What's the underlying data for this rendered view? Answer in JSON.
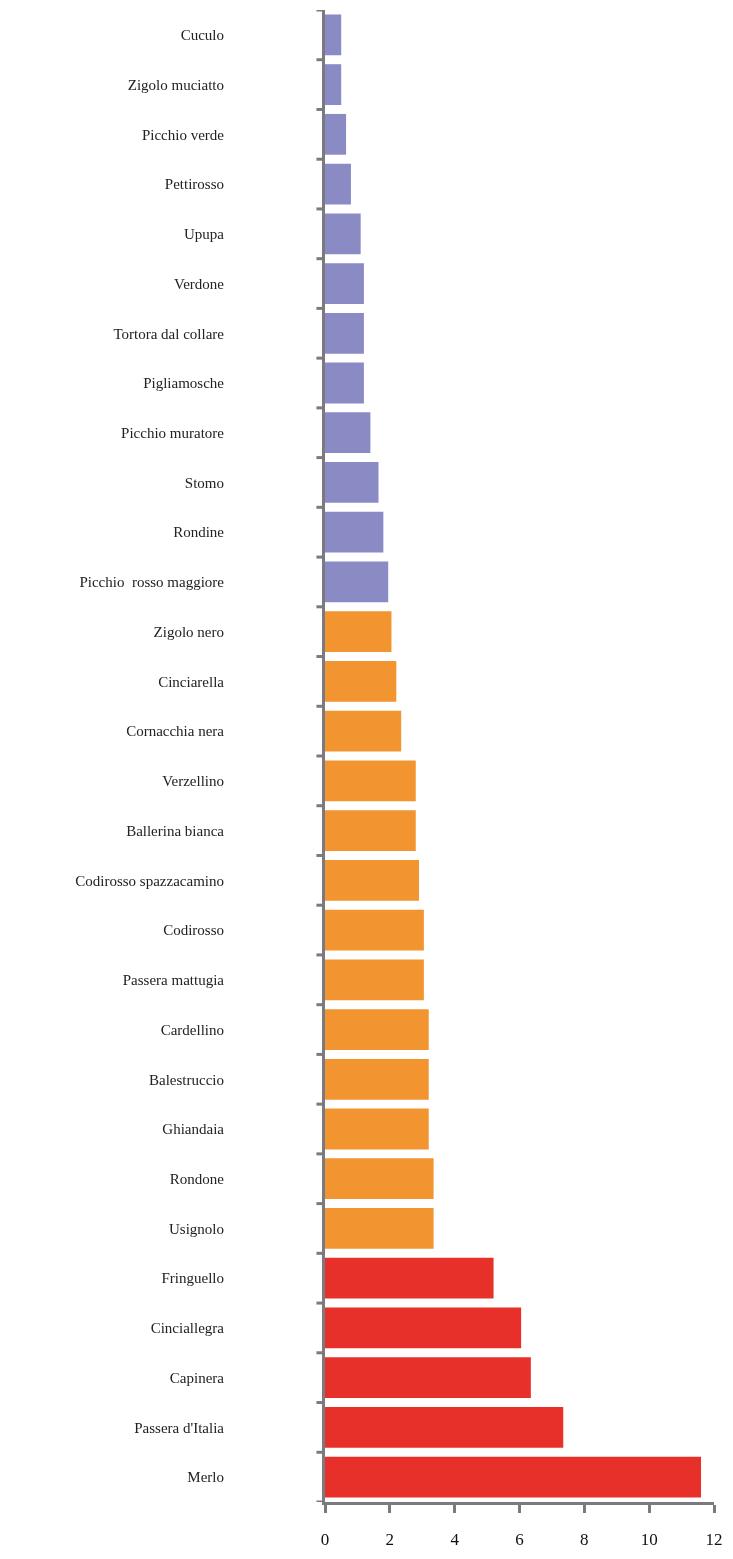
{
  "chart_data": {
    "type": "bar",
    "orientation": "horizontal",
    "categories": [
      "Cuculo",
      "Zigolo muciatto",
      "Picchio verde",
      "Pettirosso",
      "Upupa",
      "Verdone",
      "Tortora dal collare",
      "Pigliamosche",
      "Picchio muratore",
      "Stomo",
      "Rondine",
      "Picchio  rosso maggiore",
      "Zigolo nero",
      "Cinciarella",
      "Cornacchia nera",
      "Verzellino",
      "Ballerina bianca",
      "Codirosso spazzacamino",
      "Codirosso",
      "Passera mattugia",
      "Cardellino",
      "Balestruccio",
      "Ghiandaia",
      "Rondone",
      "Usignolo",
      "Fringuello",
      "Cinciallegra",
      "Capinera",
      "Passera d'Italia",
      "Merlo"
    ],
    "values": [
      0.5,
      0.5,
      0.65,
      0.8,
      1.1,
      1.2,
      1.2,
      1.2,
      1.4,
      1.65,
      1.8,
      1.95,
      2.05,
      2.2,
      2.35,
      2.8,
      2.8,
      2.9,
      3.05,
      3.05,
      3.2,
      3.2,
      3.2,
      3.35,
      3.35,
      5.2,
      6.05,
      6.35,
      7.35,
      11.6
    ],
    "colors": [
      "#8a8ac4",
      "#8a8ac4",
      "#8a8ac4",
      "#8a8ac4",
      "#8a8ac4",
      "#8a8ac4",
      "#8a8ac4",
      "#8a8ac4",
      "#8a8ac4",
      "#8a8ac4",
      "#8a8ac4",
      "#8a8ac4",
      "#f29530",
      "#f29530",
      "#f29530",
      "#f29530",
      "#f29530",
      "#f29530",
      "#f29530",
      "#f29530",
      "#f29530",
      "#f29530",
      "#f29530",
      "#f29530",
      "#f29530",
      "#e8302a",
      "#e8302a",
      "#e8302a",
      "#e8302a",
      "#e8302a"
    ],
    "xlim": [
      0,
      12
    ],
    "xticks": [
      0,
      2,
      4,
      6,
      8,
      10,
      12
    ]
  }
}
